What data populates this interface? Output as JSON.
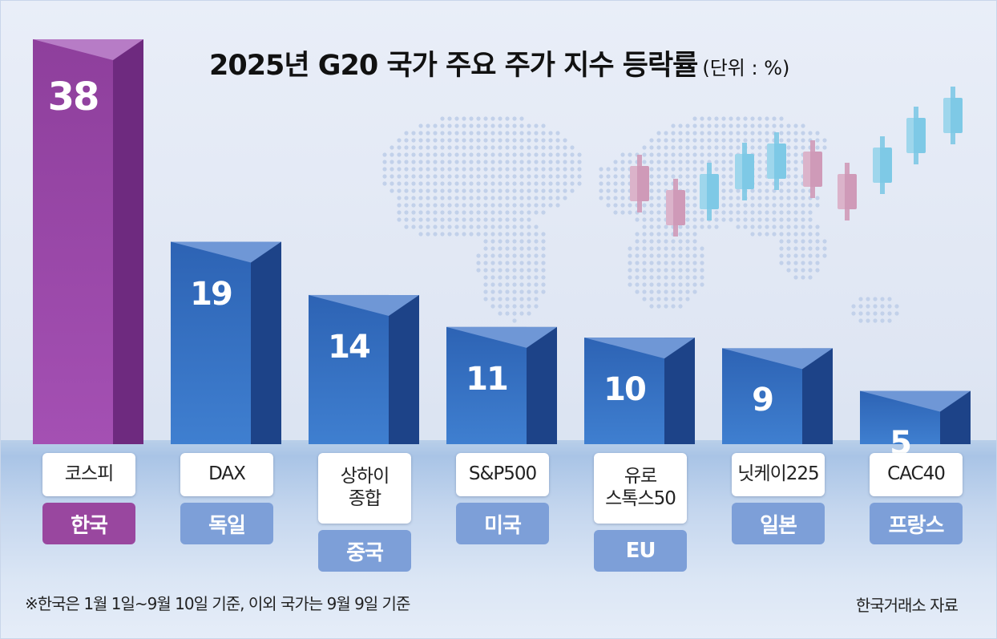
{
  "chart_data": {
    "type": "bar",
    "title": "2025년 G20 국가 주요 주가 지수 등락률",
    "unit": "(단위 : %)",
    "categories": [
      "코스피",
      "DAX",
      "상하이 종합",
      "S&P500",
      "유로 스톡스50",
      "닛케이225",
      "CAC40"
    ],
    "countries": [
      "한국",
      "독일",
      "중국",
      "미국",
      "EU",
      "일본",
      "프랑스"
    ],
    "values": [
      38,
      19,
      14,
      11,
      10,
      9,
      5
    ],
    "value_labels": [
      "38",
      "19",
      "14",
      "11",
      "10",
      "9",
      "5"
    ],
    "ylim": [
      0,
      38
    ],
    "xlabel": "",
    "ylabel": "",
    "grid": false,
    "highlight_index": 0
  },
  "labels": {
    "index_lines": [
      [
        "코스피"
      ],
      [
        "DAX"
      ],
      [
        "상하이",
        "종합"
      ],
      [
        "S&P500"
      ],
      [
        "유로",
        "스톡스50"
      ],
      [
        "닛케이225"
      ],
      [
        "CAC40"
      ]
    ]
  },
  "footnote": "※한국은 1월 1일~9월 10일 기준, 이외 국가는 9월 9일 기준",
  "source": "한국거래소 자료",
  "colors": {
    "highlight_front": "#8e3f9c",
    "highlight_side": "#6e2a7f",
    "highlight_top": "#b77cc6",
    "bar_front": "#2d63b4",
    "bar_side": "#1d4388",
    "bar_top": "#6f97d6",
    "country_highlight": "#99479f",
    "country_default": "#7d9fd8",
    "candle_up": "#7ec9e6",
    "candle_down": "#cf9ab8",
    "map_dots": "#c2d1ea"
  }
}
